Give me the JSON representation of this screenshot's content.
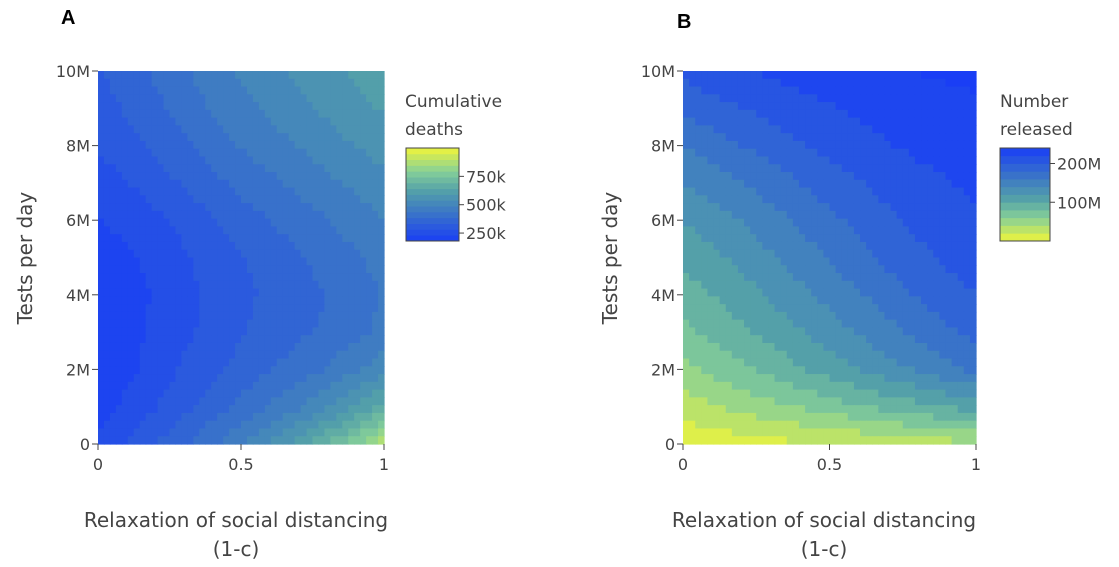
{
  "chart_data": [
    {
      "type": "contour",
      "panel_label": "A",
      "xlabel_line1": "Relaxation of social distancing",
      "xlabel_line2": "(1-c)",
      "ylabel": "Tests per day",
      "xlim": [
        0,
        1
      ],
      "ylim": [
        0,
        10000000
      ],
      "x_ticks": [
        0,
        0.5,
        1
      ],
      "x_tick_labels": [
        "0",
        "0.5",
        "1"
      ],
      "y_ticks": [
        0,
        2000000,
        4000000,
        6000000,
        8000000,
        10000000
      ],
      "y_tick_labels": [
        "0",
        "2M",
        "4M",
        "6M",
        "8M",
        "10M"
      ],
      "colorbar": {
        "title_line1": "Cumulative",
        "title_line2": "deaths",
        "min": 180000,
        "max": 1000000,
        "ticks": [
          250000,
          500000,
          750000
        ],
        "tick_labels": [
          "250k",
          "500k",
          "750k"
        ],
        "colorscale": [
          [
            0,
            "#1a3ef5"
          ],
          [
            0.3,
            "#3a74c8"
          ],
          [
            0.55,
            "#55a2a8"
          ],
          [
            0.75,
            "#86d098"
          ],
          [
            1,
            "#f0f53a"
          ]
        ]
      },
      "x": [
        0,
        0.1,
        0.2,
        0.3,
        0.4,
        0.5,
        0.6,
        0.7,
        0.8,
        0.9,
        1
      ],
      "y": [
        0,
        1000000,
        2000000,
        3000000,
        4000000,
        5000000,
        6000000,
        7000000,
        8000000,
        9000000,
        10000000
      ],
      "z": [
        [
          240000,
          280000,
          330000,
          380000,
          430000,
          480000,
          540000,
          610000,
          690000,
          780000,
          880000
        ],
        [
          210000,
          240000,
          280000,
          320000,
          360000,
          400000,
          440000,
          480000,
          530000,
          590000,
          660000
        ],
        [
          200000,
          220000,
          250000,
          290000,
          320000,
          350000,
          380000,
          410000,
          440000,
          480000,
          520000
        ],
        [
          200000,
          215000,
          240000,
          270000,
          300000,
          330000,
          355000,
          375000,
          395000,
          420000,
          450000
        ],
        [
          205000,
          215000,
          235000,
          265000,
          295000,
          320000,
          345000,
          365000,
          385000,
          410000,
          440000
        ],
        [
          210000,
          220000,
          245000,
          275000,
          305000,
          330000,
          355000,
          380000,
          405000,
          430000,
          460000
        ],
        [
          230000,
          245000,
          270000,
          300000,
          330000,
          360000,
          385000,
          410000,
          435000,
          460000,
          485000
        ],
        [
          260000,
          280000,
          310000,
          340000,
          370000,
          400000,
          425000,
          450000,
          475000,
          500000,
          525000
        ],
        [
          290000,
          310000,
          340000,
          375000,
          410000,
          440000,
          465000,
          490000,
          515000,
          540000,
          560000
        ],
        [
          310000,
          340000,
          370000,
          405000,
          440000,
          470000,
          500000,
          525000,
          550000,
          575000,
          595000
        ],
        [
          330000,
          360000,
          395000,
          430000,
          465000,
          495000,
          525000,
          550000,
          575000,
          600000,
          620000
        ]
      ]
    },
    {
      "type": "contour",
      "panel_label": "B",
      "xlabel_line1": "Relaxation of social distancing",
      "xlabel_line2": "(1-c)",
      "ylabel": "Tests per day",
      "xlim": [
        0,
        1
      ],
      "ylim": [
        0,
        10000000
      ],
      "x_ticks": [
        0,
        0.5,
        1
      ],
      "x_tick_labels": [
        "0",
        "0.5",
        "1"
      ],
      "y_ticks": [
        0,
        2000000,
        4000000,
        6000000,
        8000000,
        10000000
      ],
      "y_tick_labels": [
        "0",
        "2M",
        "4M",
        "6M",
        "8M",
        "10M"
      ],
      "colorbar": {
        "title_line1": "Number",
        "title_line2": "released",
        "min": 0,
        "max": 240000000,
        "ticks": [
          100000000,
          200000000
        ],
        "tick_labels": [
          "100M",
          "200M"
        ],
        "colorscale": [
          [
            0,
            "#f0f53a"
          ],
          [
            0.25,
            "#86d098"
          ],
          [
            0.45,
            "#55a2a8"
          ],
          [
            0.7,
            "#3a74c8"
          ],
          [
            1,
            "#1a3ef5"
          ]
        ]
      },
      "x": [
        0,
        0.1,
        0.2,
        0.3,
        0.4,
        0.5,
        0.6,
        0.7,
        0.8,
        0.9,
        1
      ],
      "y": [
        0,
        1000000,
        2000000,
        3000000,
        4000000,
        5000000,
        6000000,
        7000000,
        8000000,
        9000000,
        10000000
      ],
      "z": [
        [
          5000000,
          8000000,
          11000000,
          14000000,
          17000000,
          20000000,
          23000000,
          26000000,
          29000000,
          32000000,
          35000000
        ],
        [
          30000000,
          38000000,
          46000000,
          54000000,
          62000000,
          70000000,
          78000000,
          86000000,
          94000000,
          102000000,
          110000000
        ],
        [
          55000000,
          65000000,
          76000000,
          87000000,
          98000000,
          110000000,
          121000000,
          132000000,
          143000000,
          154000000,
          165000000
        ],
        [
          75000000,
          85000000,
          96000000,
          107000000,
          118000000,
          130000000,
          142000000,
          154000000,
          165000000,
          176000000,
          186000000
        ],
        [
          90000000,
          100000000,
          111000000,
          123000000,
          135000000,
          147000000,
          158000000,
          170000000,
          182000000,
          192000000,
          200000000
        ],
        [
          105000000,
          115000000,
          126000000,
          138000000,
          150000000,
          162000000,
          174000000,
          185000000,
          195000000,
          203000000,
          210000000
        ],
        [
          120000000,
          130000000,
          141000000,
          152000000,
          163000000,
          175000000,
          186000000,
          196000000,
          205000000,
          212000000,
          218000000
        ],
        [
          140000000,
          150000000,
          160000000,
          170000000,
          180000000,
          190000000,
          199000000,
          207000000,
          214000000,
          219000000,
          224000000
        ],
        [
          160000000,
          170000000,
          180000000,
          189000000,
          198000000,
          206000000,
          213000000,
          219000000,
          224000000,
          228000000,
          231000000
        ],
        [
          185000000,
          193000000,
          200000000,
          207000000,
          213000000,
          218000000,
          223000000,
          227000000,
          230000000,
          233000000,
          236000000
        ],
        [
          205000000,
          212000000,
          218000000,
          223000000,
          228000000,
          232000000,
          235000000,
          238000000,
          241000000,
          243000000,
          245000000
        ]
      ]
    }
  ]
}
